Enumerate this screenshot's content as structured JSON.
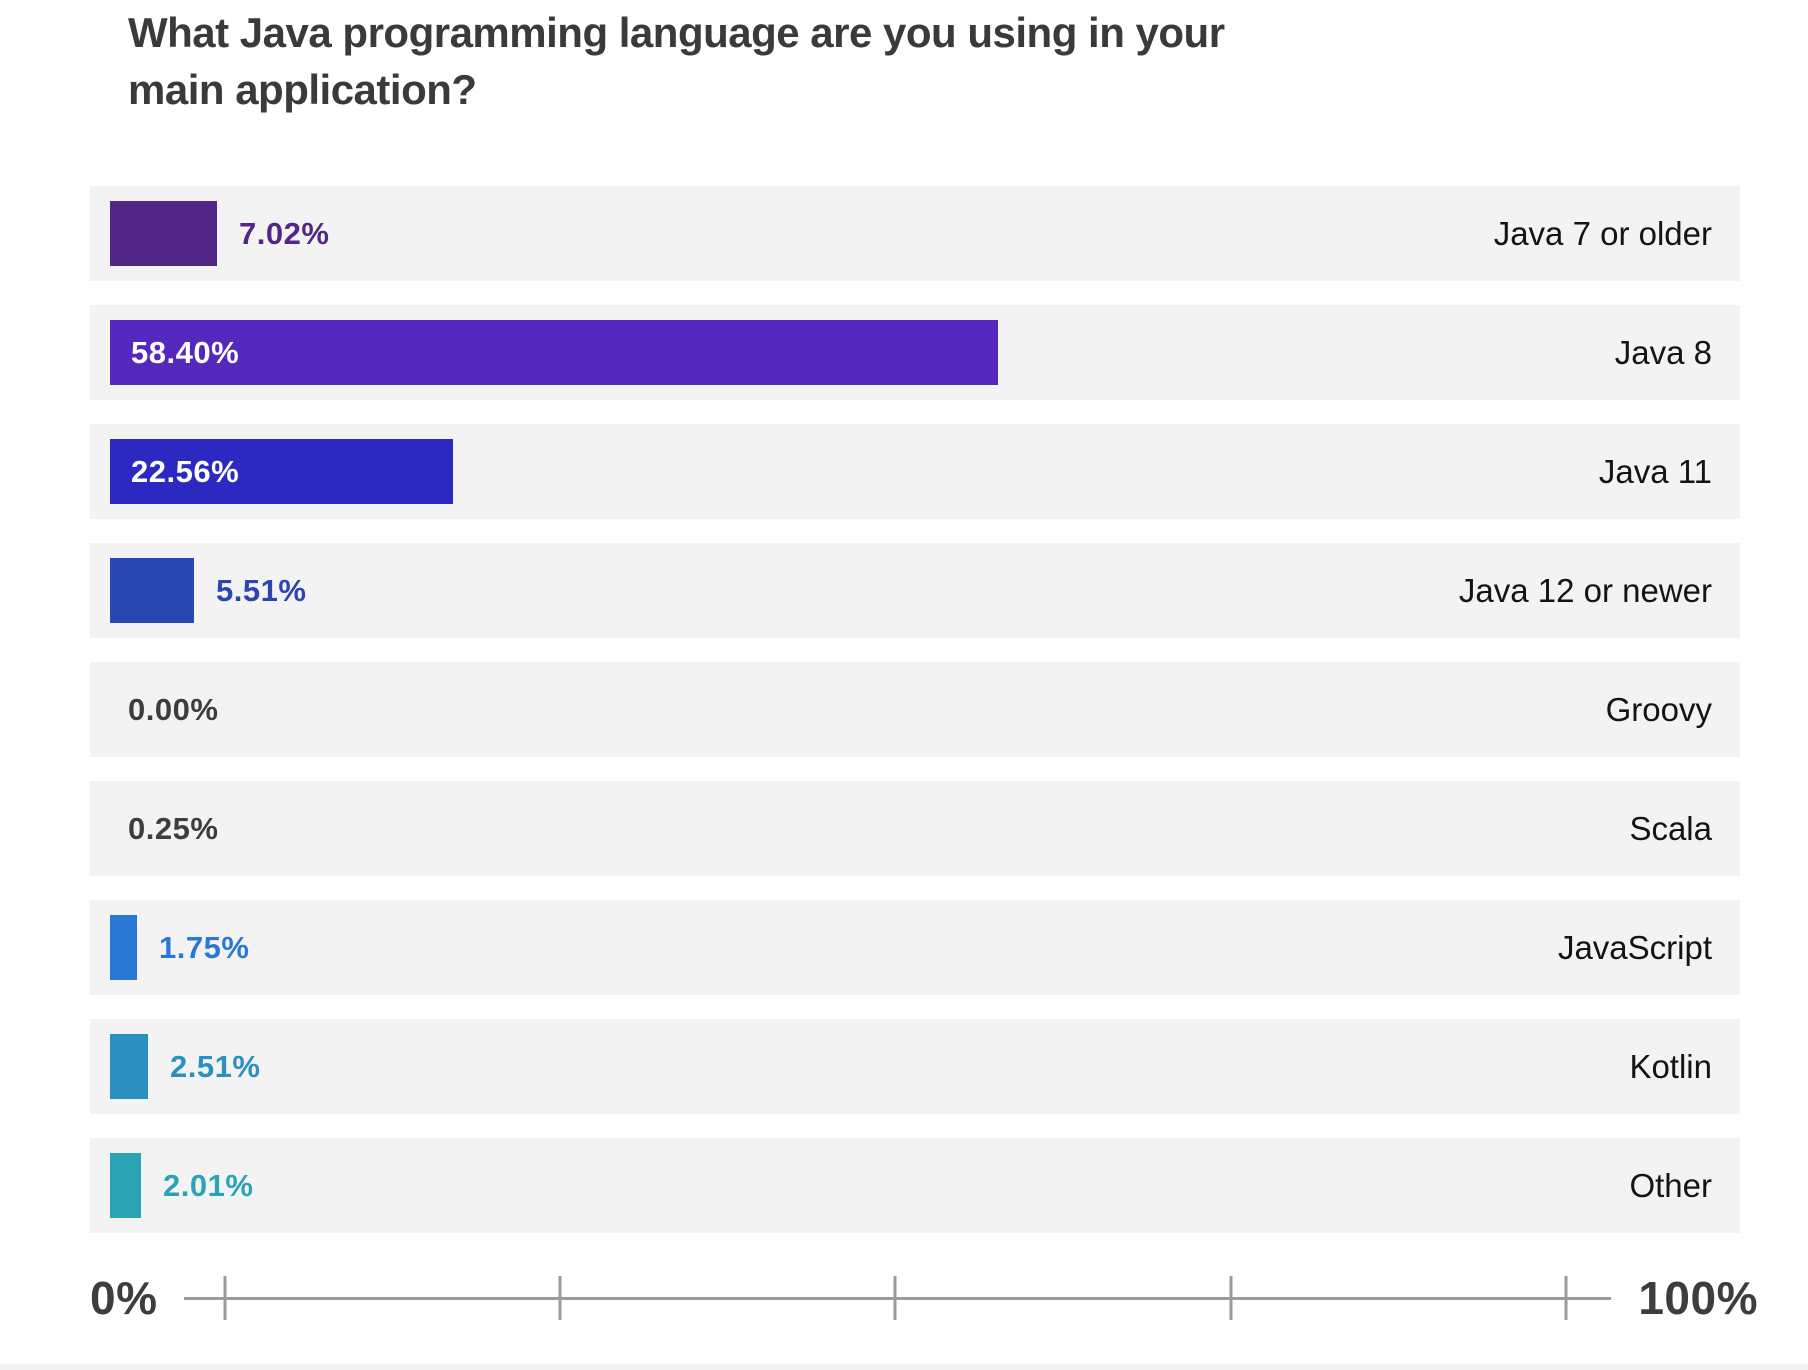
{
  "page": {
    "background": "#FFFFFF",
    "bottom_strip_color": "#F2F2F2"
  },
  "chart_data": {
    "type": "bar",
    "orientation": "horizontal",
    "title": "What Java programming language are you using in your main application?",
    "title_lines": [
      "What Java programming language are you using in your",
      "main application?"
    ],
    "categories": [
      "Java 7 or older",
      "Java 8",
      "Java 11",
      "Java 12 or newer",
      "Groovy",
      "Scala",
      "JavaScript",
      "Kotlin",
      "Other"
    ],
    "values": [
      7.02,
      58.4,
      22.56,
      5.51,
      0.0,
      0.25,
      1.75,
      2.51,
      2.01
    ],
    "value_labels": [
      "7.02%",
      "58.40%",
      "22.56%",
      "5.51%",
      "0.00%",
      "0.25%",
      "1.75%",
      "2.51%",
      "2.01%"
    ],
    "xlim": [
      0,
      100
    ],
    "grid": false,
    "legend": "none",
    "x_axis": {
      "start_label": "0%",
      "end_label": "100%",
      "tick_count": 5
    },
    "bars": [
      {
        "category": "Java 7 or older",
        "value": 7.02,
        "label": "7.02%",
        "bar_color": "#522787",
        "label_color": "#522787",
        "label_position": "outside",
        "show_bar": true
      },
      {
        "category": "Java 8",
        "value": 58.4,
        "label": "58.40%",
        "bar_color": "#5428BC",
        "label_color": "#FFFFFF",
        "label_position": "inside",
        "show_bar": true
      },
      {
        "category": "Java 11",
        "value": 22.56,
        "label": "22.56%",
        "bar_color": "#2C29C3",
        "label_color": "#FFFFFF",
        "label_position": "inside",
        "show_bar": true
      },
      {
        "category": "Java 12 or newer",
        "value": 5.51,
        "label": "5.51%",
        "bar_color": "#2A46B0",
        "label_color": "#2A46B0",
        "label_position": "outside",
        "show_bar": true
      },
      {
        "category": "Groovy",
        "value": 0.0,
        "label": "0.00%",
        "bar_color": null,
        "label_color": "#3D3D3D",
        "label_position": "outside",
        "show_bar": false
      },
      {
        "category": "Scala",
        "value": 0.25,
        "label": "0.25%",
        "bar_color": null,
        "label_color": "#3D3D3D",
        "label_position": "outside",
        "show_bar": false
      },
      {
        "category": "JavaScript",
        "value": 1.75,
        "label": "1.75%",
        "bar_color": "#2978D5",
        "label_color": "#2978D5",
        "label_position": "outside",
        "show_bar": true
      },
      {
        "category": "Kotlin",
        "value": 2.51,
        "label": "2.51%",
        "bar_color": "#2B90C0",
        "label_color": "#2B90C0",
        "label_position": "outside",
        "show_bar": true
      },
      {
        "category": "Other",
        "value": 2.01,
        "label": "2.01%",
        "bar_color": "#2AA3B4",
        "label_color": "#2AA3B4",
        "label_position": "outside",
        "show_bar": true
      }
    ],
    "colors": {
      "row_background": "#F3F3F3",
      "title_text": "#3A3A3A",
      "category_text": "#141414",
      "axis_text": "#3D3D3D",
      "axis_line": "#9B9B9B"
    }
  }
}
